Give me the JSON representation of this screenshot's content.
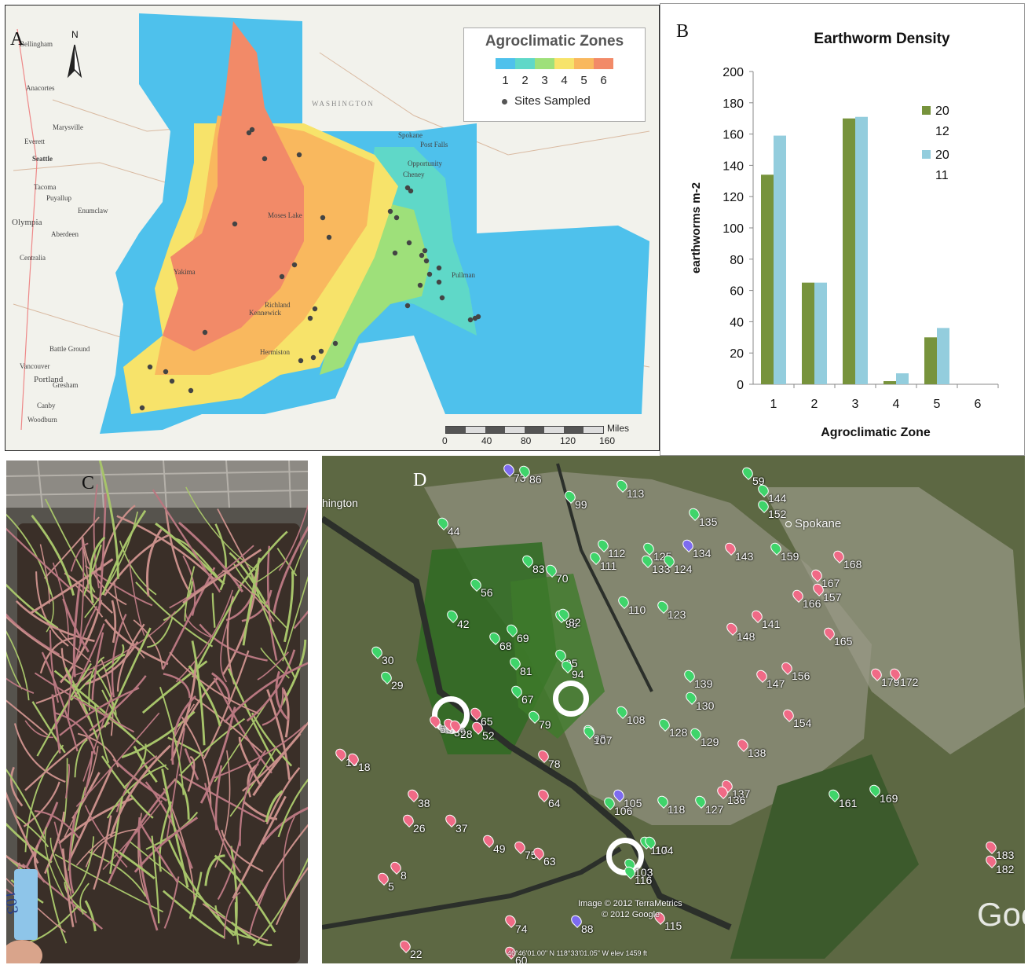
{
  "panelA": {
    "label": "A",
    "north": "N",
    "legend_title": "Agroclimatic Zones",
    "zone_numbers": [
      "1",
      "2",
      "3",
      "4",
      "5",
      "6"
    ],
    "zone_colors": [
      "#4ec1ec",
      "#5fd8c8",
      "#9ee07a",
      "#f7e36a",
      "#f9b85e",
      "#f28a68"
    ],
    "sites_label": "Sites Sampled",
    "state_label": "WASHINGTON",
    "towns": [
      "Seattle",
      "Bellingham",
      "Everett",
      "Tacoma",
      "Olympia",
      "Centralia",
      "Portland",
      "Vancouver",
      "Spokane",
      "Moses Lake",
      "Yakima",
      "Richland",
      "Kennewick",
      "Hermiston",
      "Opportunity",
      "Post Falls",
      "Cheney",
      "Pullman",
      "Marysville",
      "Aberdeen",
      "Anacortes",
      "Enumclaw",
      "Puyallup",
      "Gresham",
      "Battle Ground",
      "Canby",
      "Woodburn"
    ],
    "scale": {
      "ticks": [
        "0",
        "40",
        "80",
        "120",
        "160"
      ],
      "unit": "Miles"
    }
  },
  "panelB": {
    "label": "B"
  },
  "chart_data": {
    "type": "bar",
    "title": "Earthworm Density",
    "xlabel": "Agroclimatic Zone",
    "ylabel": "earthworms m-2",
    "categories": [
      "1",
      "2",
      "3",
      "4",
      "5",
      "6"
    ],
    "ylim": [
      0,
      200
    ],
    "yticks": [
      0,
      20,
      40,
      60,
      80,
      100,
      120,
      140,
      160,
      180,
      200
    ],
    "series": [
      {
        "name": "20 12",
        "legend_lines": [
          "20",
          "12"
        ],
        "color": "#77933c",
        "values": [
          134,
          65,
          170,
          2,
          30,
          null
        ]
      },
      {
        "name": "20 11",
        "legend_lines": [
          "20",
          "11"
        ],
        "color": "#93cddd",
        "values": [
          159,
          65,
          171,
          7,
          36,
          null
        ]
      }
    ],
    "legend_position": "right",
    "grid": false
  },
  "panelC": {
    "label": "C",
    "tag_text": "103"
  },
  "panelD": {
    "label": "D",
    "map_labels": [
      "hington",
      "Spokane"
    ],
    "credit1": "Image © 2012 TerraMetrics",
    "credit2": "© 2012 Google",
    "coords": "46°46'01.00\" N 118°33'01.05\" W elev  1459 ft",
    "brand": "Goo",
    "pins": [
      {
        "n": "73",
        "c": "purple"
      },
      {
        "n": "86",
        "c": "green"
      },
      {
        "n": "59",
        "c": "green"
      },
      {
        "n": "113",
        "c": "green"
      },
      {
        "n": "144",
        "c": "green"
      },
      {
        "n": "99",
        "c": "green"
      },
      {
        "n": "152",
        "c": "green"
      },
      {
        "n": "135",
        "c": "green"
      },
      {
        "n": "44",
        "c": "green"
      },
      {
        "n": "112",
        "c": "green"
      },
      {
        "n": "125",
        "c": "green"
      },
      {
        "n": "134",
        "c": "purple"
      },
      {
        "n": "143",
        "c": "red"
      },
      {
        "n": "159",
        "c": "green"
      },
      {
        "n": "168",
        "c": "red"
      },
      {
        "n": "111",
        "c": "green"
      },
      {
        "n": "133",
        "c": "green"
      },
      {
        "n": "124",
        "c": "green"
      },
      {
        "n": "83",
        "c": "green"
      },
      {
        "n": "70",
        "c": "green"
      },
      {
        "n": "167",
        "c": "red"
      },
      {
        "n": "56",
        "c": "green"
      },
      {
        "n": "166",
        "c": "red"
      },
      {
        "n": "157",
        "c": "red"
      },
      {
        "n": "110",
        "c": "green"
      },
      {
        "n": "123",
        "c": "green"
      },
      {
        "n": "96",
        "c": "green"
      },
      {
        "n": "82",
        "c": "green"
      },
      {
        "n": "141",
        "c": "red"
      },
      {
        "n": "148",
        "c": "red"
      },
      {
        "n": "42",
        "c": "green"
      },
      {
        "n": "165",
        "c": "red"
      },
      {
        "n": "68",
        "c": "green"
      },
      {
        "n": "69",
        "c": "green"
      },
      {
        "n": "30",
        "c": "green"
      },
      {
        "n": "95",
        "c": "green"
      },
      {
        "n": "94",
        "c": "green"
      },
      {
        "n": "81",
        "c": "green"
      },
      {
        "n": "179",
        "c": "red"
      },
      {
        "n": "147",
        "c": "red"
      },
      {
        "n": "156",
        "c": "red"
      },
      {
        "n": "139",
        "c": "green"
      },
      {
        "n": "172",
        "c": "red"
      },
      {
        "n": "29",
        "c": "green"
      },
      {
        "n": "67",
        "c": "green"
      },
      {
        "n": "130",
        "c": "green"
      },
      {
        "n": "65",
        "c": "red"
      },
      {
        "n": "154",
        "c": "red"
      },
      {
        "n": "108",
        "c": "green"
      },
      {
        "n": "53",
        "c": "red"
      },
      {
        "n": "39",
        "c": "red"
      },
      {
        "n": "28",
        "c": "red"
      },
      {
        "n": "52",
        "c": "red"
      },
      {
        "n": "79",
        "c": "green"
      },
      {
        "n": "128",
        "c": "green"
      },
      {
        "n": "93",
        "c": "green"
      },
      {
        "n": "107",
        "c": "green"
      },
      {
        "n": "129",
        "c": "green"
      },
      {
        "n": "10",
        "c": "red"
      },
      {
        "n": "78",
        "c": "red"
      },
      {
        "n": "138",
        "c": "red"
      },
      {
        "n": "18",
        "c": "red"
      },
      {
        "n": "38",
        "c": "red"
      },
      {
        "n": "64",
        "c": "red"
      },
      {
        "n": "105",
        "c": "purple"
      },
      {
        "n": "137",
        "c": "red"
      },
      {
        "n": "106",
        "c": "green"
      },
      {
        "n": "118",
        "c": "green"
      },
      {
        "n": "127",
        "c": "green"
      },
      {
        "n": "136",
        "c": "red"
      },
      {
        "n": "161",
        "c": "green"
      },
      {
        "n": "169",
        "c": "green"
      },
      {
        "n": "37",
        "c": "red"
      },
      {
        "n": "26",
        "c": "red"
      },
      {
        "n": "49",
        "c": "red"
      },
      {
        "n": "183",
        "c": "red"
      },
      {
        "n": "117",
        "c": "green"
      },
      {
        "n": "104",
        "c": "green"
      },
      {
        "n": "75",
        "c": "red"
      },
      {
        "n": "63",
        "c": "red"
      },
      {
        "n": "182",
        "c": "red"
      },
      {
        "n": "8",
        "c": "red"
      },
      {
        "n": "103",
        "c": "green"
      },
      {
        "n": "5",
        "c": "red"
      },
      {
        "n": "116",
        "c": "green"
      },
      {
        "n": "74",
        "c": "red"
      },
      {
        "n": "88",
        "c": "purple"
      },
      {
        "n": "115",
        "c": "red"
      },
      {
        "n": "22",
        "c": "red"
      },
      {
        "n": "60",
        "c": "red"
      }
    ]
  }
}
